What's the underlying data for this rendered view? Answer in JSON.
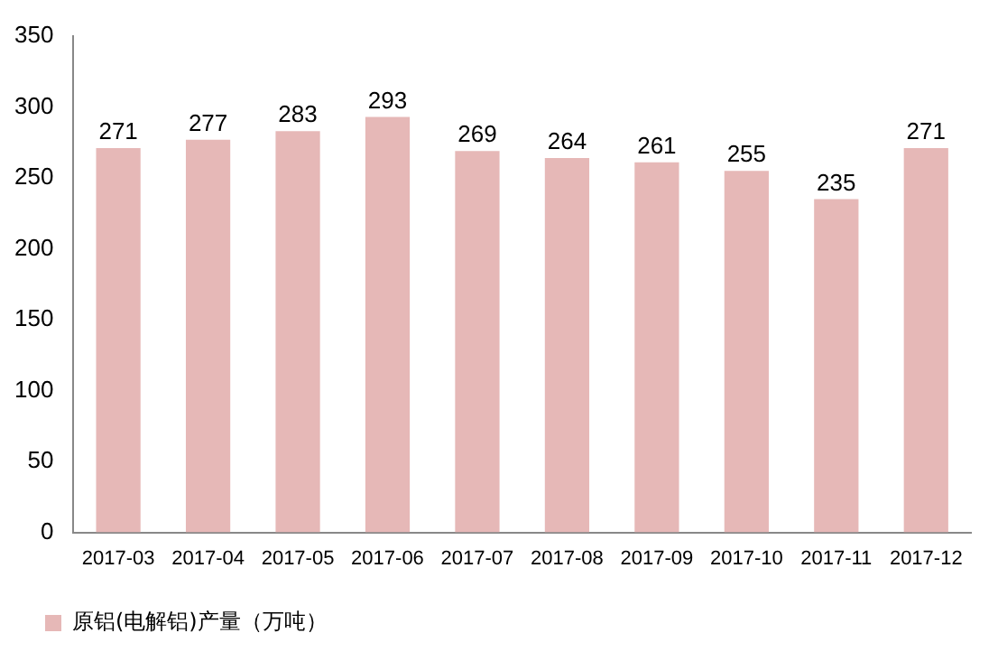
{
  "chart_data": {
    "type": "bar",
    "categories": [
      "2017-03",
      "2017-04",
      "2017-05",
      "2017-06",
      "2017-07",
      "2017-08",
      "2017-09",
      "2017-10",
      "2017-11",
      "2017-12"
    ],
    "series": [
      {
        "name": "原铝(电解铝)产量（万吨）",
        "color": "#e6b8b7",
        "values": [
          271,
          277,
          283,
          293,
          269,
          264,
          261,
          255,
          235,
          271
        ]
      }
    ],
    "ylim": [
      0,
      350
    ],
    "yticks": [
      0,
      50,
      100,
      150,
      200,
      250,
      300,
      350
    ],
    "grid": false,
    "legend": "bottom left",
    "data_labels": true
  }
}
